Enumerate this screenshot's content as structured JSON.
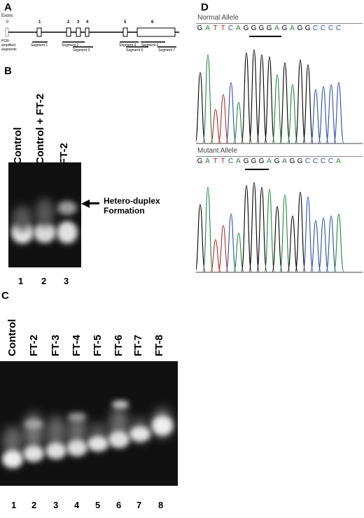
{
  "panel_a": {
    "letter": "A",
    "exons_label": "Exons",
    "exon_zero": "0",
    "pcr_label_1": "PCR-",
    "pcr_label_2": "amplified",
    "pcr_label_3": "segments",
    "exon_numbers": [
      "1",
      "2",
      "3",
      "4",
      "5",
      "6"
    ],
    "segments": [
      "Segment 1",
      "Segment 2",
      "Segment 3",
      "Segment 4",
      "Segment 5",
      "Segment 6",
      "Segment 7"
    ]
  },
  "panel_b": {
    "letter": "B",
    "lanes": [
      "Control",
      "Control + FT-2",
      "FT-2"
    ],
    "lane_numbers": [
      "1",
      "2",
      "3"
    ],
    "annotation_1": "Hetero-duplex",
    "annotation_2": "Formation"
  },
  "panel_c": {
    "letter": "C",
    "lanes": [
      "Control",
      "FT-2",
      "FT-3",
      "FT-4",
      "FT-5",
      "FT-6",
      "FT-7",
      "FT-8"
    ],
    "lane_numbers": [
      "1",
      "2",
      "3",
      "4",
      "5",
      "6",
      "7",
      "8"
    ]
  },
  "panel_d": {
    "letter": "D",
    "normal_title": "Normal Allele",
    "normal_sequence": [
      "G",
      "A",
      "T",
      "T",
      "C",
      "A",
      "G",
      "G",
      "G",
      "G",
      "A",
      "G",
      "A",
      "G",
      "G",
      "C",
      "C",
      "C",
      "C"
    ],
    "mutant_title": "Mutant Allele",
    "mutant_sequence": [
      "G",
      "A",
      "T",
      "T",
      "C",
      "A",
      "G",
      "G",
      "G",
      "A",
      "G",
      "A",
      "G",
      "G",
      "C",
      "C",
      "C",
      "C",
      "A"
    ]
  },
  "colors": {
    "base_G": "#000000",
    "base_A": "#1f8a3a",
    "base_T": "#c0282d",
    "base_C": "#2a4fb0",
    "gel_background": "#111111"
  }
}
